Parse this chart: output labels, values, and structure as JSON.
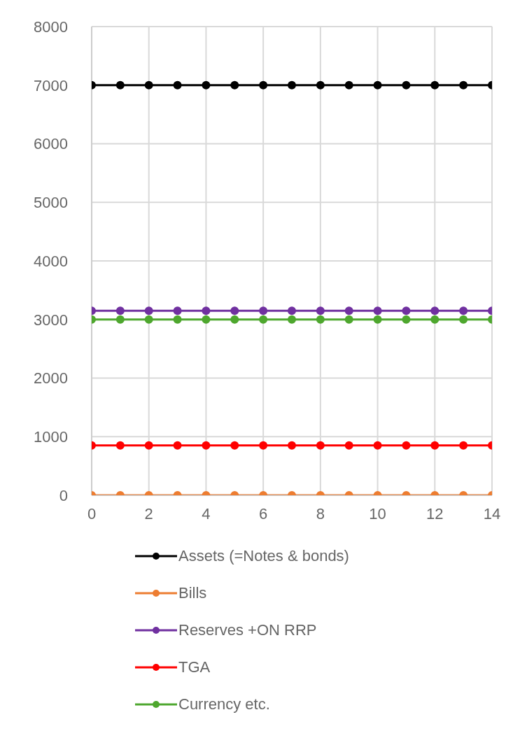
{
  "chart_data": {
    "type": "line",
    "x": [
      0,
      1,
      2,
      3,
      4,
      5,
      6,
      7,
      8,
      9,
      10,
      11,
      12,
      13,
      14
    ],
    "series": [
      {
        "name": "Assets (=Notes & bonds)",
        "color": "#000000",
        "values": [
          7000,
          7000,
          7000,
          7000,
          7000,
          7000,
          7000,
          7000,
          7000,
          7000,
          7000,
          7000,
          7000,
          7000,
          7000
        ]
      },
      {
        "name": "Bills",
        "color": "#ed7d31",
        "values": [
          0,
          0,
          0,
          0,
          0,
          0,
          0,
          0,
          0,
          0,
          0,
          0,
          0,
          0,
          0
        ]
      },
      {
        "name": "Reserves +ON RRP",
        "color": "#7030a0",
        "values": [
          3150,
          3150,
          3150,
          3150,
          3150,
          3150,
          3150,
          3150,
          3150,
          3150,
          3150,
          3150,
          3150,
          3150,
          3150
        ]
      },
      {
        "name": "TGA",
        "color": "#ff0000",
        "values": [
          850,
          850,
          850,
          850,
          850,
          850,
          850,
          850,
          850,
          850,
          850,
          850,
          850,
          850,
          850
        ]
      },
      {
        "name": "Currency etc.",
        "color": "#4ea72e",
        "values": [
          3000,
          3000,
          3000,
          3000,
          3000,
          3000,
          3000,
          3000,
          3000,
          3000,
          3000,
          3000,
          3000,
          3000,
          3000
        ]
      }
    ],
    "xlim": [
      0,
      14
    ],
    "xticks": [
      0,
      2,
      4,
      6,
      8,
      10,
      12,
      14
    ],
    "ylim": [
      0,
      8000
    ],
    "yticks": [
      0,
      1000,
      2000,
      3000,
      4000,
      5000,
      6000,
      7000,
      8000
    ],
    "grid": true,
    "legend": "bottom",
    "marker": "circle",
    "line_style": "solid"
  }
}
